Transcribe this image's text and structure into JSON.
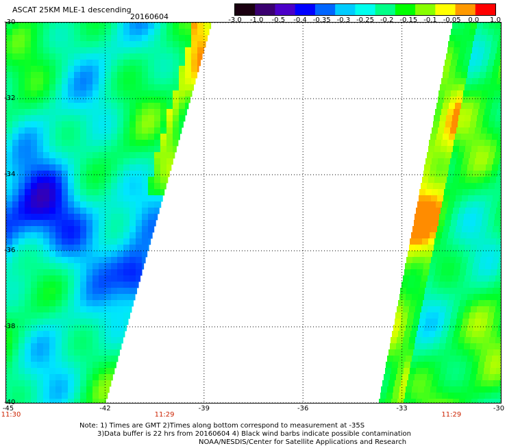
{
  "header": {
    "title": "ASCAT 25KM MLE-1 descending",
    "date": "20160604"
  },
  "colorbar": {
    "labels": [
      "-3.0",
      "-1.0",
      "-0.5",
      "-0.4",
      "-0.35",
      "-0.3",
      "-0.25",
      "-0.2",
      "-0.15",
      "-0.1",
      "-0.05",
      "0.0",
      "1.0"
    ],
    "colors": [
      "#1a0010",
      "#3a0070",
      "#4b00c8",
      "#0000ff",
      "#0066ff",
      "#00ccff",
      "#00ffee",
      "#00ff88",
      "#00ff00",
      "#88ff00",
      "#ffff00",
      "#ff9900",
      "#ff0000"
    ]
  },
  "axes": {
    "lat_labels": [
      "-30",
      "-32",
      "-34",
      "-36",
      "-38",
      "-40"
    ],
    "lon_labels": [
      "-45",
      "-42",
      "-39",
      "-36",
      "-33",
      "-30"
    ],
    "time_labels": [
      {
        "text": "11:30",
        "lon": -45
      },
      {
        "text": "11:29",
        "lon": -40.2
      },
      {
        "text": "11:29",
        "lon": -31.5
      }
    ]
  },
  "notes": {
    "line1": "Note: 1) Times are GMT 2)Times along bottom correspond to measurement at -35S",
    "line2": "3)Data buffer is 22 hrs from 20160604 4) Black wind barbs indicate possible contamination",
    "line3": "NOAA/NESDIS/Center for Satellite Applications and Research"
  }
}
